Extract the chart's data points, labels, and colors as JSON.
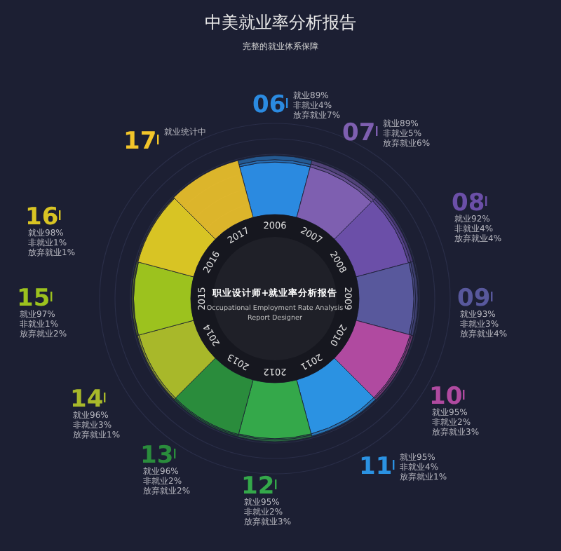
{
  "chart_data": {
    "type": "other",
    "title": "中美就业率分析报告",
    "subtitle": "完整的就业体系保障",
    "categories": [
      "06",
      "07",
      "08",
      "09",
      "10",
      "11",
      "12",
      "13",
      "14",
      "15",
      "16",
      "17"
    ],
    "colors": [
      "#2b8ae0",
      "#7e5fb0",
      "#6b4fa8",
      "#58589c",
      "#b04aa0",
      "#2b92e2",
      "#34a84a",
      "#2a8c3c",
      "#a8b82a",
      "#9cc21e",
      "#d8c424",
      "#f2c52a"
    ],
    "series": [
      {
        "name": "就业",
        "values": [
          89,
          89,
          92,
          93,
          95,
          95,
          95,
          96,
          96,
          97,
          98,
          null
        ],
        "value_labels": [
          "89%",
          "89%",
          "92%",
          "93%",
          "95%",
          "95%",
          "95%",
          "96%",
          "96%",
          "97%",
          "98%",
          null
        ]
      },
      {
        "name": "非就业",
        "values": [
          4,
          5,
          4,
          3,
          2,
          4,
          2,
          2,
          3,
          1,
          1,
          null
        ],
        "value_labels": [
          "4%",
          "5%",
          "4%",
          "3%",
          "2%",
          "4%",
          "2%",
          "2%",
          "3%",
          "1%",
          "1%",
          null
        ]
      },
      {
        "name": "放弃就业",
        "values": [
          7,
          6,
          4,
          4,
          3,
          1,
          3,
          2,
          1,
          2,
          1,
          null
        ],
        "value_labels": [
          "7%",
          "6%",
          "4%",
          "4%",
          "3%",
          "1%",
          "3%",
          "2%",
          "1%",
          "2%",
          "1%",
          null
        ]
      }
    ],
    "annotations": [
      {
        "text": "就业统计中",
        "x": "17"
      },
      "2006",
      "2007",
      "2008",
      "2009",
      "2010",
      "2011",
      "2012",
      "2013",
      "2014",
      "2015",
      "2016",
      "2017",
      "职业设计师+就业率分析报告",
      "Occupational Employment Rate Analysis",
      "Report Designer"
    ]
  }
}
